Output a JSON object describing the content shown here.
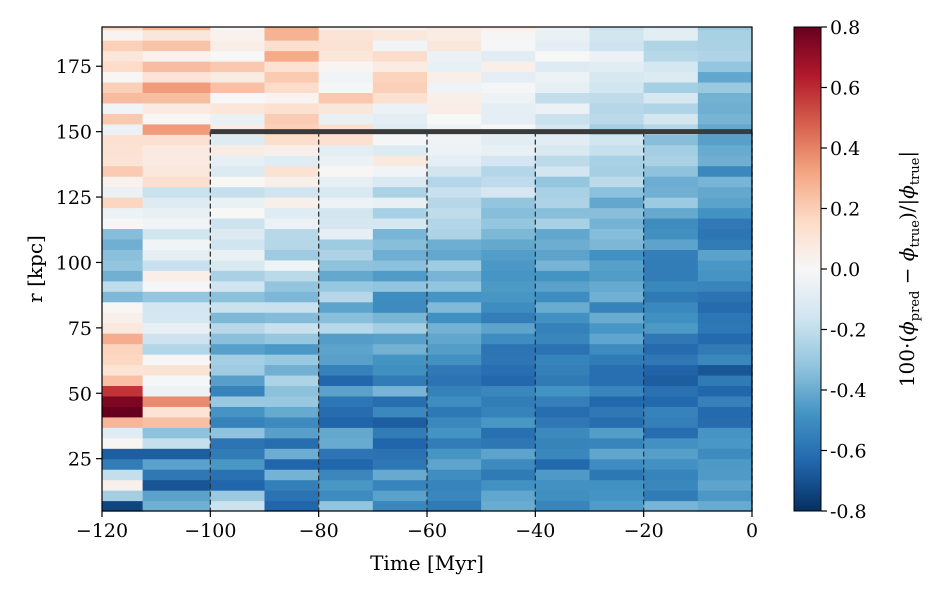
{
  "chart_data": {
    "type": "heatmap",
    "title": "",
    "xlabel": "Time [Myr]",
    "ylabel": "r [kpc]",
    "xlim": [
      -120,
      0
    ],
    "ylim": [
      5,
      190
    ],
    "x_ticks": [
      -120,
      -100,
      -80,
      -60,
      -40,
      -20,
      0
    ],
    "x_tick_labels": [
      "−120",
      "−100",
      "−80",
      "−60",
      "−40",
      "−20",
      "0"
    ],
    "y_ticks": [
      25,
      50,
      75,
      100,
      125,
      150,
      175
    ],
    "y_tick_labels": [
      "25",
      "50",
      "75",
      "100",
      "125",
      "150",
      "175"
    ],
    "time_bins": [
      -120,
      -112.5,
      -100,
      -90,
      -80,
      -70,
      -60,
      -50,
      -40,
      -30,
      -20,
      -10,
      0
    ],
    "r_bin_width_kpc": 4,
    "horizontal_line": {
      "y": 150,
      "x_from": -100,
      "x_to": 0
    },
    "dashed_lines": [
      -100,
      -80,
      -60,
      -40,
      -20,
      0
    ],
    "dashed_line_range": [
      5,
      150
    ],
    "colorbar": {
      "label_prefix": "100·(",
      "label_phi": "ϕ",
      "label_pred": "pred",
      "label_minus": " − ",
      "label_true": "true",
      "label_mid": ")/|",
      "label_end": "|",
      "vmin": -0.8,
      "vmax": 0.8,
      "ticks": [
        0.8,
        0.6,
        0.4,
        0.2,
        0.0,
        -0.2,
        -0.4,
        -0.6,
        -0.8
      ],
      "tick_labels": [
        "0.8",
        "0.6",
        "0.4",
        "0.2",
        "0.0",
        "-0.2",
        "-0.4",
        "-0.6",
        "-0.8"
      ],
      "colormap": "RdBu_r"
    },
    "column_profiles": [
      {
        "x_range": [
          -120,
          -112.5
        ],
        "r": [
          5,
          15,
          25,
          45,
          55,
          70,
          90,
          110,
          130,
          150,
          170,
          190
        ],
        "value": [
          -0.7,
          0.25,
          -0.6,
          0.75,
          0.25,
          0.1,
          -0.3,
          -0.3,
          0.1,
          0.05,
          0.15,
          0.1
        ]
      },
      {
        "x_range": [
          -112.5,
          -100
        ],
        "r": [
          5,
          15,
          25,
          45,
          55,
          70,
          90,
          110,
          130,
          150,
          170,
          190
        ],
        "value": [
          -0.6,
          -0.5,
          -0.6,
          0.3,
          0.1,
          -0.1,
          -0.15,
          -0.05,
          -0.1,
          0.2,
          0.25,
          0.2
        ]
      },
      {
        "x_range": [
          -100,
          -90
        ],
        "r": [
          5,
          15,
          25,
          45,
          55,
          70,
          90,
          110,
          130,
          150,
          170,
          190
        ],
        "value": [
          0.1,
          -0.6,
          -0.45,
          -0.45,
          -0.45,
          -0.35,
          -0.25,
          -0.15,
          -0.05,
          0.05,
          0.1,
          0.1
        ]
      },
      {
        "x_range": [
          -90,
          -80
        ],
        "r": [
          5,
          15,
          25,
          45,
          55,
          70,
          90,
          110,
          130,
          150,
          170,
          190
        ],
        "value": [
          -0.7,
          -0.5,
          -0.5,
          -0.4,
          -0.4,
          -0.35,
          -0.2,
          -0.15,
          -0.05,
          0.05,
          0.15,
          0.2
        ]
      },
      {
        "x_range": [
          -80,
          -70
        ],
        "r": [
          5,
          15,
          25,
          45,
          55,
          70,
          90,
          110,
          130,
          150,
          170,
          190
        ],
        "value": [
          -0.2,
          -0.6,
          -0.5,
          -0.5,
          -0.55,
          -0.4,
          -0.3,
          -0.2,
          -0.1,
          0.05,
          0.1,
          0.1
        ]
      },
      {
        "x_range": [
          -70,
          -60
        ],
        "r": [
          5,
          15,
          25,
          45,
          55,
          70,
          90,
          110,
          130,
          150,
          170,
          190
        ],
        "value": [
          -0.5,
          -0.55,
          -0.5,
          -0.55,
          -0.5,
          -0.45,
          -0.35,
          -0.25,
          -0.1,
          0.0,
          0.05,
          0.1
        ]
      },
      {
        "x_range": [
          -60,
          -50
        ],
        "r": [
          5,
          15,
          25,
          45,
          55,
          70,
          90,
          110,
          130,
          150,
          170,
          190
        ],
        "value": [
          -0.6,
          -0.55,
          -0.5,
          -0.55,
          -0.55,
          -0.45,
          -0.4,
          -0.3,
          -0.15,
          -0.05,
          0.0,
          0.05
        ]
      },
      {
        "x_range": [
          -50,
          -40
        ],
        "r": [
          5,
          15,
          25,
          45,
          55,
          70,
          90,
          110,
          130,
          150,
          170,
          190
        ],
        "value": [
          -0.3,
          -0.5,
          -0.5,
          -0.55,
          -0.55,
          -0.5,
          -0.45,
          -0.35,
          -0.2,
          -0.1,
          -0.05,
          0.0
        ]
      },
      {
        "x_range": [
          -40,
          -30
        ],
        "r": [
          5,
          15,
          25,
          45,
          55,
          70,
          90,
          110,
          130,
          150,
          170,
          190
        ],
        "value": [
          -0.5,
          -0.5,
          -0.55,
          -0.6,
          -0.55,
          -0.5,
          -0.45,
          -0.35,
          -0.25,
          -0.15,
          -0.1,
          -0.05
        ]
      },
      {
        "x_range": [
          -30,
          -20
        ],
        "r": [
          5,
          15,
          25,
          45,
          55,
          70,
          90,
          110,
          130,
          150,
          170,
          190
        ],
        "value": [
          -0.45,
          -0.5,
          -0.5,
          -0.55,
          -0.55,
          -0.5,
          -0.45,
          -0.4,
          -0.3,
          -0.2,
          -0.15,
          -0.1
        ]
      },
      {
        "x_range": [
          -20,
          -10
        ],
        "r": [
          5,
          15,
          25,
          45,
          55,
          70,
          90,
          110,
          130,
          150,
          170,
          190
        ],
        "value": [
          -0.45,
          -0.5,
          -0.5,
          -0.6,
          -0.6,
          -0.55,
          -0.5,
          -0.45,
          -0.35,
          -0.25,
          -0.2,
          -0.15
        ]
      },
      {
        "x_range": [
          -10,
          0
        ],
        "r": [
          5,
          15,
          25,
          45,
          55,
          70,
          90,
          110,
          130,
          150,
          170,
          190
        ],
        "value": [
          -0.45,
          -0.5,
          -0.5,
          -0.6,
          -0.62,
          -0.58,
          -0.55,
          -0.5,
          -0.45,
          -0.4,
          -0.35,
          -0.3
        ]
      }
    ]
  }
}
